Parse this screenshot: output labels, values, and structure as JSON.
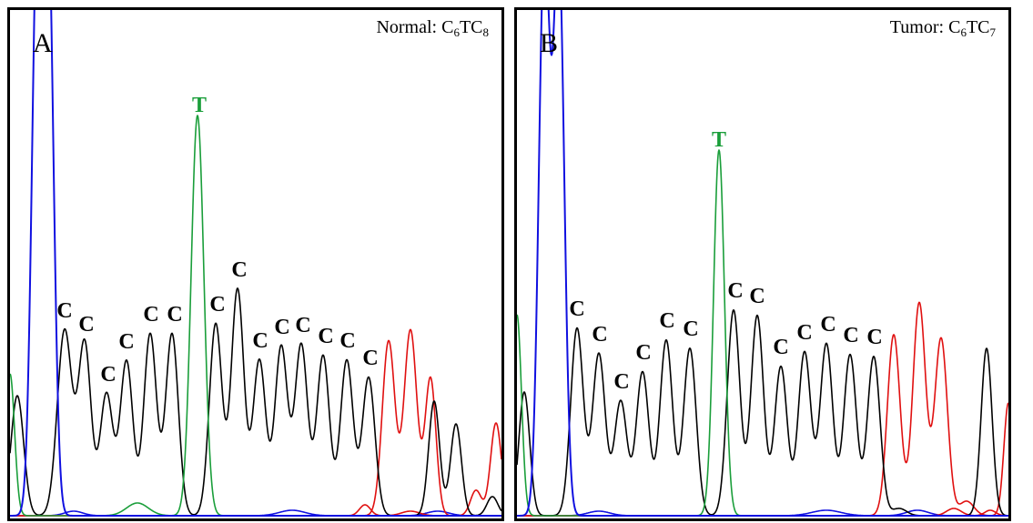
{
  "colors": {
    "C": "#000000",
    "T": "#1a9e3a",
    "A": "#1010e0",
    "G": "#e01010",
    "border": "#000000"
  },
  "panels": [
    {
      "id": "A",
      "letter": "A",
      "caption": {
        "label": "Normal: ",
        "p1": "C",
        "s1": "6",
        "p2": "TC",
        "s2": "8"
      },
      "labels": [
        {
          "base": "C",
          "text": "C"
        },
        {
          "base": "C",
          "text": "C"
        },
        {
          "base": "C",
          "text": "C"
        },
        {
          "base": "C",
          "text": "C"
        },
        {
          "base": "C",
          "text": "C"
        },
        {
          "base": "C",
          "text": "C"
        },
        {
          "base": "T",
          "text": "T"
        },
        {
          "base": "C",
          "text": "C"
        },
        {
          "base": "C",
          "text": "C"
        },
        {
          "base": "C",
          "text": "C"
        },
        {
          "base": "C",
          "text": "C"
        },
        {
          "base": "C",
          "text": "C"
        },
        {
          "base": "C",
          "text": "C"
        },
        {
          "base": "C",
          "text": "C"
        },
        {
          "base": "C",
          "text": "C"
        }
      ]
    },
    {
      "id": "B",
      "letter": "B",
      "caption": {
        "label": "Tumor: ",
        "p1": "C",
        "s1": "6",
        "p2": "TC",
        "s2": "7"
      },
      "labels": [
        {
          "base": "C",
          "text": "C"
        },
        {
          "base": "C",
          "text": "C"
        },
        {
          "base": "C",
          "text": "C"
        },
        {
          "base": "C",
          "text": "C"
        },
        {
          "base": "C",
          "text": "C"
        },
        {
          "base": "C",
          "text": "C"
        },
        {
          "base": "T",
          "text": "T"
        },
        {
          "base": "C",
          "text": "C"
        },
        {
          "base": "C",
          "text": "C"
        },
        {
          "base": "C",
          "text": "C"
        },
        {
          "base": "C",
          "text": "C"
        },
        {
          "base": "C",
          "text": "C"
        },
        {
          "base": "C",
          "text": "C"
        },
        {
          "base": "C",
          "text": "C"
        }
      ]
    }
  ]
}
